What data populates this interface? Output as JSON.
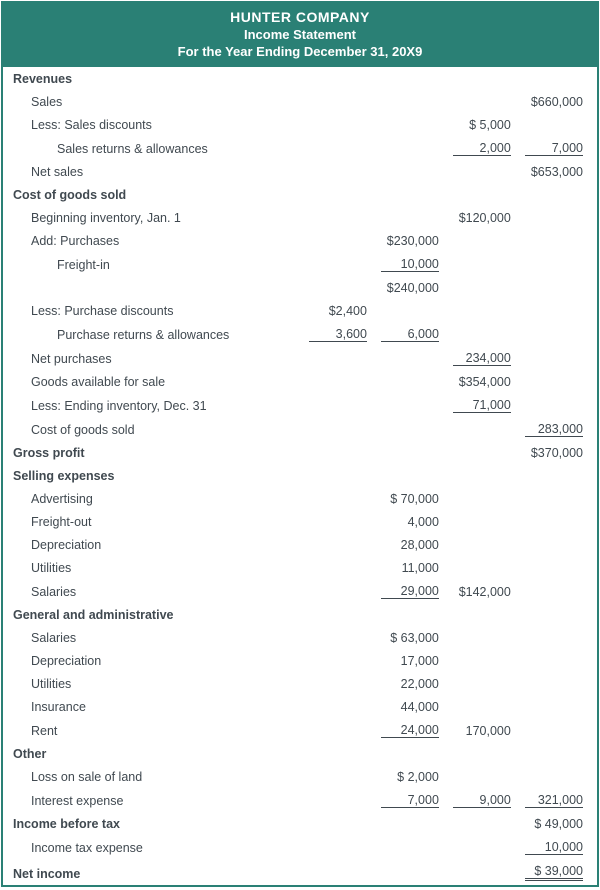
{
  "header": {
    "company": "HUNTER COMPANY",
    "title": "Income Statement",
    "period": "For the Year Ending December 31, 20X9"
  },
  "colors": {
    "brand": "#2a8075",
    "text": "#404950",
    "background": "#ffffff"
  },
  "rows": [
    {
      "label": "Revenues",
      "indent": 0,
      "c1": "",
      "c2": "",
      "c3": "",
      "c4": ""
    },
    {
      "label": "Sales",
      "indent": 1,
      "c1": "",
      "c2": "",
      "c3": "",
      "c4": "$660,000"
    },
    {
      "label": "Less:  Sales discounts",
      "indent": 1,
      "c1": "",
      "c2": "",
      "c3": "$    5,000",
      "c4": ""
    },
    {
      "label": "Sales returns & allowances",
      "indent": 2,
      "c1": "",
      "c2": "",
      "c3": "2,000",
      "c3u": true,
      "c4": "7,000",
      "c4u": true
    },
    {
      "label": "Net sales",
      "indent": 1,
      "c1": "",
      "c2": "",
      "c3": "",
      "c4": "$653,000"
    },
    {
      "label": "Cost of goods sold",
      "indent": 0,
      "c1": "",
      "c2": "",
      "c3": "",
      "c4": ""
    },
    {
      "label": "Beginning inventory, Jan. 1",
      "indent": 1,
      "c1": "",
      "c2": "",
      "c3": "$120,000",
      "c4": ""
    },
    {
      "label": "Add:  Purchases",
      "indent": 1,
      "c1": "",
      "c2": "$230,000",
      "c3": "",
      "c4": ""
    },
    {
      "label": "Freight-in",
      "indent": 2,
      "c1": "",
      "c2": "10,000",
      "c2u": true,
      "c3": "",
      "c4": ""
    },
    {
      "label": "",
      "indent": 2,
      "c1": "",
      "c2": "$240,000",
      "c3": "",
      "c4": ""
    },
    {
      "label": "Less:  Purchase discounts",
      "indent": 1,
      "c1": "$2,400",
      "c2": "",
      "c3": "",
      "c4": ""
    },
    {
      "label": "Purchase returns & allowances",
      "indent": 2,
      "c1": "3,600",
      "c1u": true,
      "c2": "6,000",
      "c2u": true,
      "c3": "",
      "c4": ""
    },
    {
      "label": "Net purchases",
      "indent": 1,
      "c1": "",
      "c2": "",
      "c3": "234,000",
      "c3u": true,
      "c4": ""
    },
    {
      "label": "Goods available for sale",
      "indent": 1,
      "c1": "",
      "c2": "",
      "c3": "$354,000",
      "c4": ""
    },
    {
      "label": "Less:  Ending inventory, Dec. 31",
      "indent": 1,
      "c1": "",
      "c2": "",
      "c3": "71,000",
      "c3u": true,
      "c4": ""
    },
    {
      "label": "Cost of goods sold",
      "indent": 1,
      "c1": "",
      "c2": "",
      "c3": "",
      "c4": "283,000",
      "c4u": true
    },
    {
      "label": "Gross profit",
      "indent": 0,
      "c1": "",
      "c2": "",
      "c3": "",
      "c4": "$370,000"
    },
    {
      "label": "Selling expenses",
      "indent": 0,
      "c1": "",
      "c2": "",
      "c3": "",
      "c4": ""
    },
    {
      "label": "Advertising",
      "indent": 1,
      "c1": "",
      "c2": "$  70,000",
      "c3": "",
      "c4": ""
    },
    {
      "label": "Freight-out",
      "indent": 1,
      "c1": "",
      "c2": "4,000",
      "c3": "",
      "c4": ""
    },
    {
      "label": "Depreciation",
      "indent": 1,
      "c1": "",
      "c2": "28,000",
      "c3": "",
      "c4": ""
    },
    {
      "label": "Utilities",
      "indent": 1,
      "c1": "",
      "c2": "11,000",
      "c3": "",
      "c4": ""
    },
    {
      "label": "Salaries",
      "indent": 1,
      "c1": "",
      "c2": "29,000",
      "c2u": true,
      "c3": "$142,000",
      "c4": ""
    },
    {
      "label": "General and administrative",
      "indent": 0,
      "c1": "",
      "c2": "",
      "c3": "",
      "c4": ""
    },
    {
      "label": "Salaries",
      "indent": 1,
      "c1": "",
      "c2": "$  63,000",
      "c3": "",
      "c4": ""
    },
    {
      "label": "Depreciation",
      "indent": 1,
      "c1": "",
      "c2": "17,000",
      "c3": "",
      "c4": ""
    },
    {
      "label": "Utilities",
      "indent": 1,
      "c1": "",
      "c2": "22,000",
      "c3": "",
      "c4": ""
    },
    {
      "label": "Insurance",
      "indent": 1,
      "c1": "",
      "c2": "44,000",
      "c3": "",
      "c4": ""
    },
    {
      "label": "Rent",
      "indent": 1,
      "c1": "",
      "c2": "24,000",
      "c2u": true,
      "c3": "170,000",
      "c4": ""
    },
    {
      "label": "Other",
      "indent": 0,
      "c1": "",
      "c2": "",
      "c3": "",
      "c4": ""
    },
    {
      "label": "Loss on sale of land",
      "indent": 1,
      "c1": "",
      "c2": "$    2,000",
      "c3": "",
      "c4": ""
    },
    {
      "label": "Interest expense",
      "indent": 1,
      "c1": "",
      "c2": "7,000",
      "c2u": true,
      "c3": "9,000",
      "c3u": true,
      "c4": "321,000",
      "c4u": true
    },
    {
      "label": "Income before tax",
      "indent": 0,
      "c1": "",
      "c2": "",
      "c3": "",
      "c4": "$  49,000"
    },
    {
      "label": "Income tax expense",
      "indent": 1,
      "c1": "",
      "c2": "",
      "c3": "",
      "c4": "10,000",
      "c4u": true
    },
    {
      "label": "Net income",
      "indent": 0,
      "c1": "",
      "c2": "",
      "c3": "",
      "c4": "$  39,000",
      "c4d": true
    }
  ]
}
